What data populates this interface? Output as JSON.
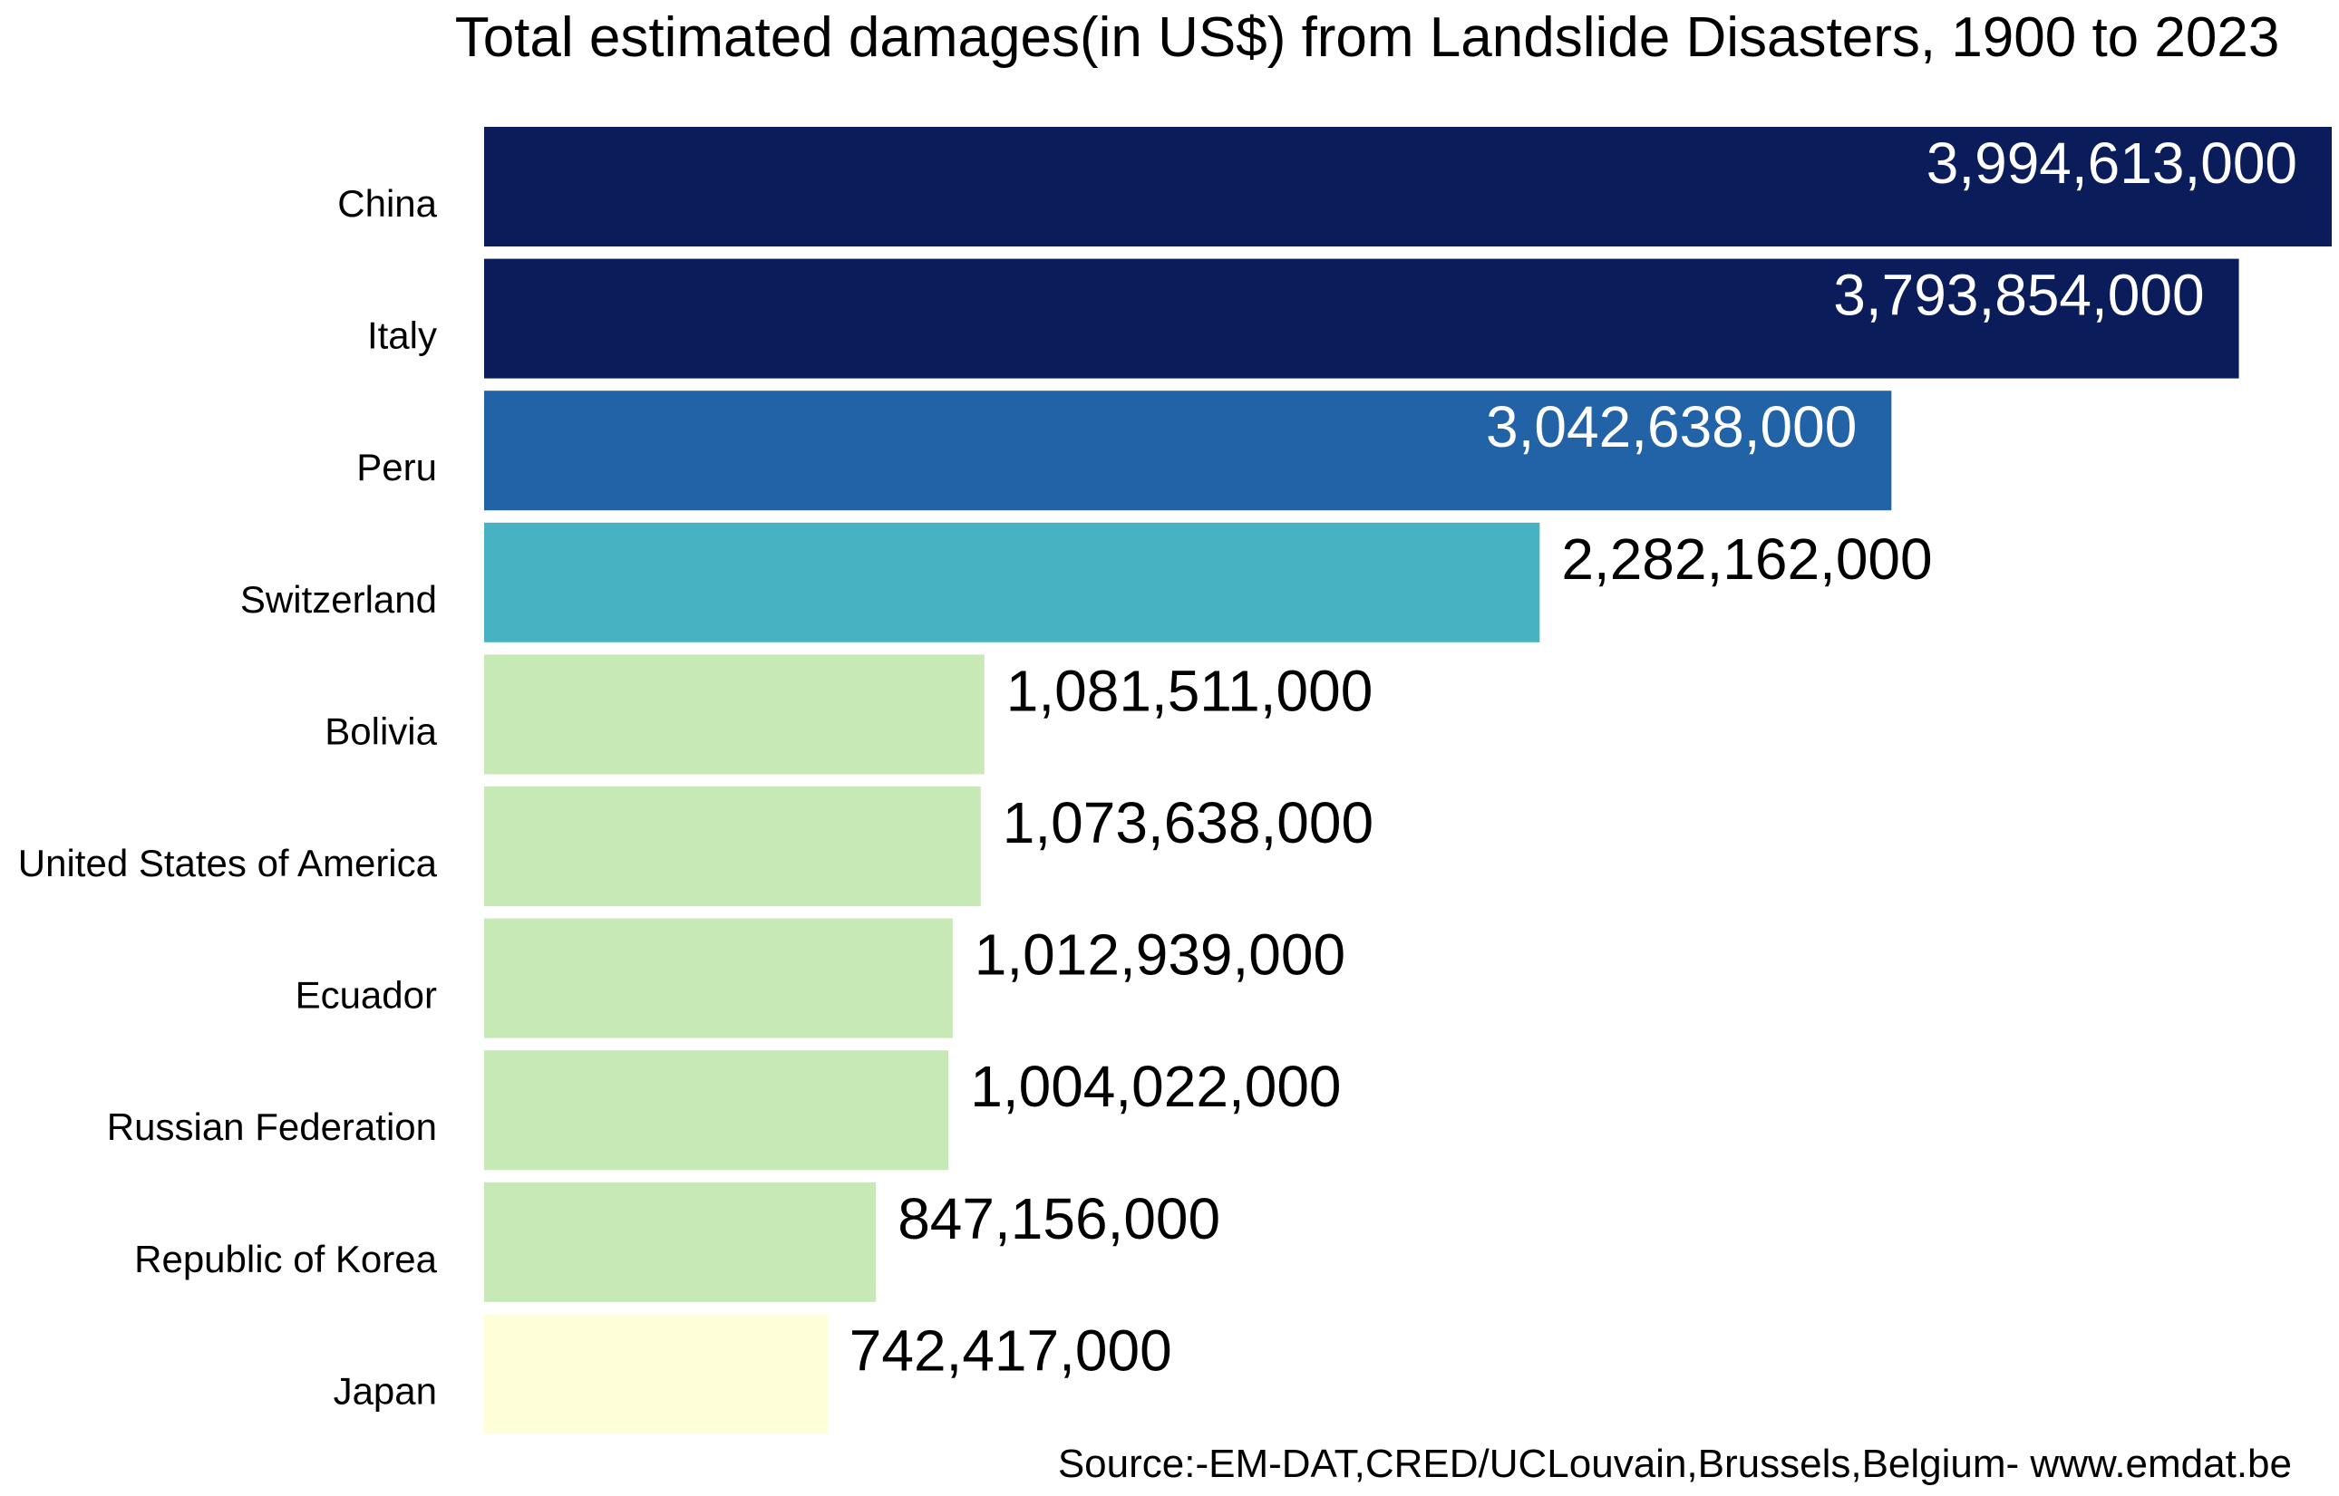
{
  "chart_data": {
    "type": "bar",
    "orientation": "horizontal",
    "title": "Total estimated damages(in US$) from Landslide Disasters, 1900 to 2023",
    "source": "Source:-EM-DAT,CRED/UCLouvain,Brussels,Belgium- www.emdat.be",
    "xlabel": "",
    "ylabel": "",
    "xlim": [
      0,
      3994613000
    ],
    "grid": false,
    "legend": "none",
    "categories": [
      "China",
      "Italy",
      "Peru",
      "Switzerland",
      "Bolivia",
      "United States of America",
      "Ecuador",
      "Russian Federation",
      "Republic of Korea",
      "Japan"
    ],
    "values": [
      3994613000,
      3793854000,
      3042638000,
      2282162000,
      1081511000,
      1073638000,
      1012939000,
      1004022000,
      847156000,
      742417000
    ],
    "value_labels": [
      "3,994,613,000",
      "3,793,854,000",
      "3,042,638,000",
      "2,282,162,000",
      "1,081,511,000",
      "1,073,638,000",
      "1,012,939,000",
      "1,004,022,000",
      "847,156,000",
      "742,417,000"
    ],
    "colors": [
      "#0b1c5a",
      "#0b1c5a",
      "#2163a6",
      "#47b3c2",
      "#c6e9b5",
      "#c6e9b5",
      "#c6e9b5",
      "#c6e9b5",
      "#c6e9b5",
      "#fefed8"
    ],
    "label_colors": [
      "#ffffff",
      "#ffffff",
      "#ffffff",
      "#000000",
      "#000000",
      "#000000",
      "#000000",
      "#000000",
      "#000000",
      "#000000"
    ],
    "label_inside": [
      true,
      true,
      true,
      false,
      false,
      false,
      false,
      false,
      false,
      false
    ]
  }
}
